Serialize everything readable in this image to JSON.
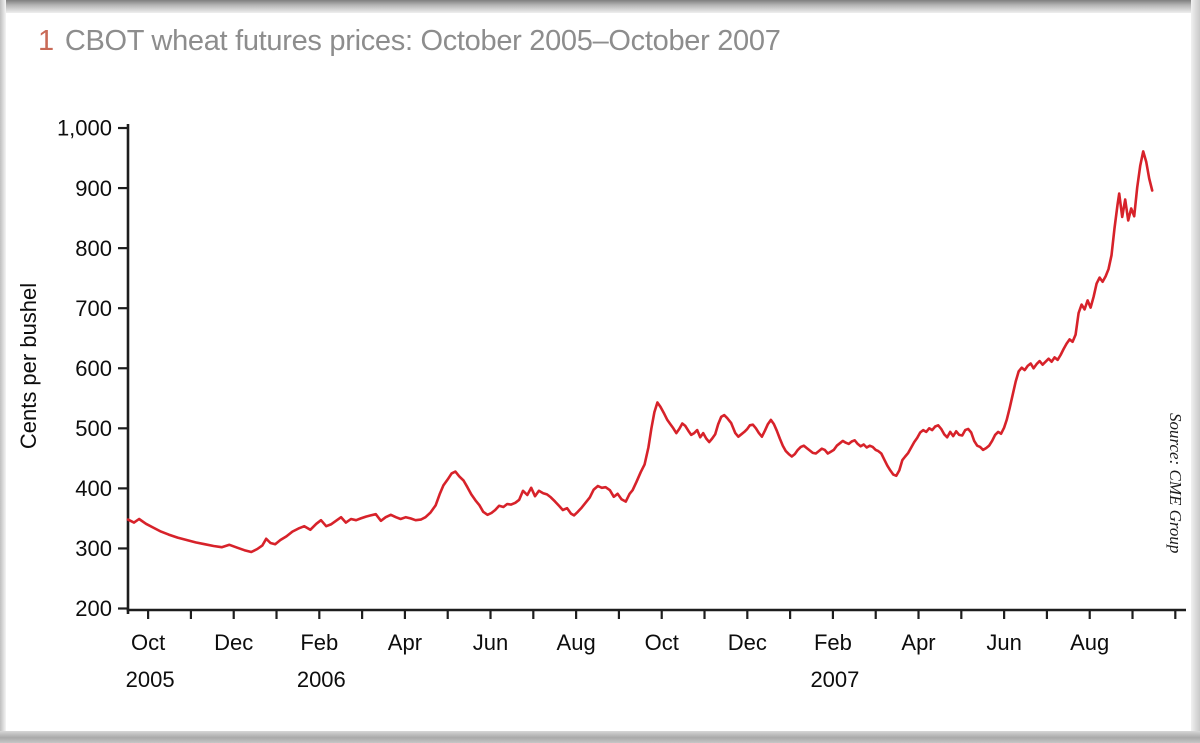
{
  "figure": {
    "number": "1",
    "title": "CBOT wheat futures prices: October 2005–October 2007",
    "number_color": "#c96a57",
    "title_color": "#8d8d8d"
  },
  "chart_data": {
    "type": "line",
    "title": "CBOT wheat futures prices: October 2005–October 2007",
    "xlabel": "",
    "ylabel": "Cents per bushel",
    "ylim": [
      200,
      1000
    ],
    "grid": false,
    "legend": false,
    "source_note": "Source: CME Group",
    "y_ticks": [
      {
        "value": 200,
        "label": "200"
      },
      {
        "value": 300,
        "label": "300"
      },
      {
        "value": 400,
        "label": "400"
      },
      {
        "value": 500,
        "label": "500"
      },
      {
        "value": 600,
        "label": "600"
      },
      {
        "value": 700,
        "label": "700"
      },
      {
        "value": 800,
        "label": "800"
      },
      {
        "value": 900,
        "label": "900"
      },
      {
        "value": 1000,
        "label": "1,000"
      }
    ],
    "x_unit": "months since 2005-10-01 (0 = Oct 2005, labeled ticks every 2nd month, minor tick every month)",
    "x_ticks": [
      {
        "month": "Oct",
        "year": "2005"
      },
      {
        "month": "Dec"
      },
      {
        "month": "Feb",
        "year": "2006"
      },
      {
        "month": "Apr"
      },
      {
        "month": "Jun"
      },
      {
        "month": "Aug"
      },
      {
        "month": "Oct"
      },
      {
        "month": "Dec"
      },
      {
        "month": "Feb",
        "year": "2007"
      },
      {
        "month": "Apr"
      },
      {
        "month": "Jun"
      },
      {
        "month": "Aug"
      }
    ],
    "series": [
      {
        "name": "CBOT wheat futures price (cents per bushel)",
        "color": "#d7222a",
        "points": [
          [
            0,
            348
          ],
          [
            0.14,
            343
          ],
          [
            0.26,
            349
          ],
          [
            0.42,
            341
          ],
          [
            0.58,
            335
          ],
          [
            0.77,
            328
          ],
          [
            0.95,
            323
          ],
          [
            1.16,
            318
          ],
          [
            1.37,
            314
          ],
          [
            1.58,
            310
          ],
          [
            1.79,
            307
          ],
          [
            2.0,
            304
          ],
          [
            2.19,
            302
          ],
          [
            2.37,
            306
          ],
          [
            2.56,
            301
          ],
          [
            2.72,
            297
          ],
          [
            2.88,
            294
          ],
          [
            3.02,
            299
          ],
          [
            3.14,
            305
          ],
          [
            3.23,
            316
          ],
          [
            3.33,
            309
          ],
          [
            3.44,
            307
          ],
          [
            3.56,
            314
          ],
          [
            3.7,
            320
          ],
          [
            3.84,
            328
          ],
          [
            3.98,
            333
          ],
          [
            4.12,
            337
          ],
          [
            4.26,
            331
          ],
          [
            4.4,
            341
          ],
          [
            4.51,
            347
          ],
          [
            4.63,
            337
          ],
          [
            4.74,
            340
          ],
          [
            4.86,
            346
          ],
          [
            4.98,
            352
          ],
          [
            5.09,
            343
          ],
          [
            5.21,
            349
          ],
          [
            5.33,
            347
          ],
          [
            5.44,
            350
          ],
          [
            5.56,
            353
          ],
          [
            5.67,
            355
          ],
          [
            5.79,
            357
          ],
          [
            5.91,
            346
          ],
          [
            6.02,
            352
          ],
          [
            6.14,
            356
          ],
          [
            6.26,
            352
          ],
          [
            6.37,
            349
          ],
          [
            6.49,
            352
          ],
          [
            6.6,
            350
          ],
          [
            6.72,
            347
          ],
          [
            6.84,
            348
          ],
          [
            6.95,
            352
          ],
          [
            7.07,
            360
          ],
          [
            7.19,
            372
          ],
          [
            7.28,
            390
          ],
          [
            7.37,
            405
          ],
          [
            7.47,
            415
          ],
          [
            7.56,
            425
          ],
          [
            7.65,
            428
          ],
          [
            7.74,
            420
          ],
          [
            7.84,
            413
          ],
          [
            7.93,
            402
          ],
          [
            8.02,
            390
          ],
          [
            8.12,
            380
          ],
          [
            8.21,
            372
          ],
          [
            8.3,
            361
          ],
          [
            8.4,
            356
          ],
          [
            8.49,
            359
          ],
          [
            8.58,
            364
          ],
          [
            8.67,
            371
          ],
          [
            8.77,
            369
          ],
          [
            8.86,
            374
          ],
          [
            8.95,
            373
          ],
          [
            9.05,
            376
          ],
          [
            9.14,
            381
          ],
          [
            9.23,
            396
          ],
          [
            9.33,
            389
          ],
          [
            9.42,
            401
          ],
          [
            9.51,
            387
          ],
          [
            9.6,
            396
          ],
          [
            9.7,
            392
          ],
          [
            9.79,
            390
          ],
          [
            9.88,
            385
          ],
          [
            9.98,
            378
          ],
          [
            10.07,
            371
          ],
          [
            10.16,
            364
          ],
          [
            10.26,
            367
          ],
          [
            10.35,
            358
          ],
          [
            10.42,
            355
          ],
          [
            10.51,
            361
          ],
          [
            10.6,
            368
          ],
          [
            10.7,
            377
          ],
          [
            10.79,
            385
          ],
          [
            10.88,
            398
          ],
          [
            10.98,
            404
          ],
          [
            11.07,
            401
          ],
          [
            11.16,
            402
          ],
          [
            11.26,
            397
          ],
          [
            11.35,
            386
          ],
          [
            11.44,
            391
          ],
          [
            11.53,
            382
          ],
          [
            11.63,
            378
          ],
          [
            11.72,
            391
          ],
          [
            11.79,
            397
          ],
          [
            11.88,
            411
          ],
          [
            11.98,
            427
          ],
          [
            12.07,
            440
          ],
          [
            12.16,
            468
          ],
          [
            12.23,
            500
          ],
          [
            12.3,
            527
          ],
          [
            12.37,
            543
          ],
          [
            12.44,
            536
          ],
          [
            12.53,
            524
          ],
          [
            12.6,
            514
          ],
          [
            12.67,
            507
          ],
          [
            12.74,
            500
          ],
          [
            12.81,
            492
          ],
          [
            12.88,
            499
          ],
          [
            12.95,
            508
          ],
          [
            13.02,
            504
          ],
          [
            13.09,
            496
          ],
          [
            13.16,
            489
          ],
          [
            13.23,
            492
          ],
          [
            13.3,
            497
          ],
          [
            13.37,
            485
          ],
          [
            13.44,
            492
          ],
          [
            13.51,
            483
          ],
          [
            13.58,
            477
          ],
          [
            13.65,
            483
          ],
          [
            13.72,
            490
          ],
          [
            13.79,
            507
          ],
          [
            13.86,
            519
          ],
          [
            13.93,
            522
          ],
          [
            14.0,
            517
          ],
          [
            14.09,
            509
          ],
          [
            14.19,
            492
          ],
          [
            14.26,
            486
          ],
          [
            14.33,
            490
          ],
          [
            14.4,
            494
          ],
          [
            14.47,
            499
          ],
          [
            14.53,
            505
          ],
          [
            14.6,
            506
          ],
          [
            14.67,
            500
          ],
          [
            14.74,
            492
          ],
          [
            14.81,
            486
          ],
          [
            14.88,
            496
          ],
          [
            14.95,
            507
          ],
          [
            15.02,
            514
          ],
          [
            15.09,
            507
          ],
          [
            15.16,
            496
          ],
          [
            15.23,
            483
          ],
          [
            15.3,
            471
          ],
          [
            15.37,
            462
          ],
          [
            15.44,
            457
          ],
          [
            15.51,
            453
          ],
          [
            15.58,
            457
          ],
          [
            15.65,
            464
          ],
          [
            15.72,
            469
          ],
          [
            15.79,
            471
          ],
          [
            15.86,
            467
          ],
          [
            15.93,
            463
          ],
          [
            16.0,
            459
          ],
          [
            16.07,
            458
          ],
          [
            16.14,
            462
          ],
          [
            16.21,
            466
          ],
          [
            16.28,
            464
          ],
          [
            16.35,
            458
          ],
          [
            16.42,
            461
          ],
          [
            16.49,
            464
          ],
          [
            16.56,
            471
          ],
          [
            16.63,
            475
          ],
          [
            16.7,
            479
          ],
          [
            16.77,
            476
          ],
          [
            16.84,
            474
          ],
          [
            16.91,
            478
          ],
          [
            16.98,
            480
          ],
          [
            17.05,
            474
          ],
          [
            17.12,
            470
          ],
          [
            17.19,
            473
          ],
          [
            17.26,
            468
          ],
          [
            17.33,
            471
          ],
          [
            17.4,
            469
          ],
          [
            17.47,
            464
          ],
          [
            17.53,
            462
          ],
          [
            17.6,
            458
          ],
          [
            17.67,
            448
          ],
          [
            17.74,
            438
          ],
          [
            17.81,
            430
          ],
          [
            17.88,
            423
          ],
          [
            17.95,
            421
          ],
          [
            18.02,
            430
          ],
          [
            18.09,
            447
          ],
          [
            18.16,
            453
          ],
          [
            18.23,
            459
          ],
          [
            18.3,
            468
          ],
          [
            18.37,
            477
          ],
          [
            18.44,
            484
          ],
          [
            18.51,
            493
          ],
          [
            18.58,
            497
          ],
          [
            18.65,
            494
          ],
          [
            18.72,
            500
          ],
          [
            18.79,
            497
          ],
          [
            18.86,
            503
          ],
          [
            18.93,
            505
          ],
          [
            19.0,
            499
          ],
          [
            19.07,
            490
          ],
          [
            19.14,
            485
          ],
          [
            19.21,
            494
          ],
          [
            19.28,
            487
          ],
          [
            19.35,
            495
          ],
          [
            19.42,
            489
          ],
          [
            19.49,
            488
          ],
          [
            19.56,
            497
          ],
          [
            19.63,
            499
          ],
          [
            19.7,
            493
          ],
          [
            19.77,
            479
          ],
          [
            19.84,
            471
          ],
          [
            19.91,
            469
          ],
          [
            19.98,
            464
          ],
          [
            20.05,
            467
          ],
          [
            20.12,
            471
          ],
          [
            20.19,
            479
          ],
          [
            20.26,
            489
          ],
          [
            20.33,
            494
          ],
          [
            20.4,
            491
          ],
          [
            20.47,
            501
          ],
          [
            20.53,
            514
          ],
          [
            20.6,
            534
          ],
          [
            20.67,
            556
          ],
          [
            20.74,
            578
          ],
          [
            20.81,
            595
          ],
          [
            20.88,
            601
          ],
          [
            20.95,
            597
          ],
          [
            21.02,
            604
          ],
          [
            21.09,
            608
          ],
          [
            21.16,
            600
          ],
          [
            21.23,
            607
          ],
          [
            21.3,
            612
          ],
          [
            21.37,
            606
          ],
          [
            21.44,
            611
          ],
          [
            21.51,
            616
          ],
          [
            21.58,
            611
          ],
          [
            21.65,
            618
          ],
          [
            21.72,
            614
          ],
          [
            21.79,
            622
          ],
          [
            21.86,
            632
          ],
          [
            21.93,
            641
          ],
          [
            22.0,
            648
          ],
          [
            22.07,
            644
          ],
          [
            22.14,
            656
          ],
          [
            22.21,
            692
          ],
          [
            22.28,
            706
          ],
          [
            22.35,
            698
          ],
          [
            22.42,
            713
          ],
          [
            22.49,
            701
          ],
          [
            22.56,
            719
          ],
          [
            22.63,
            741
          ],
          [
            22.7,
            751
          ],
          [
            22.77,
            744
          ],
          [
            22.84,
            753
          ],
          [
            22.91,
            765
          ],
          [
            22.98,
            788
          ],
          [
            23.05,
            833
          ],
          [
            23.12,
            872
          ],
          [
            23.16,
            891
          ],
          [
            23.23,
            852
          ],
          [
            23.3,
            881
          ],
          [
            23.37,
            846
          ],
          [
            23.44,
            866
          ],
          [
            23.51,
            853
          ],
          [
            23.58,
            901
          ],
          [
            23.65,
            937
          ],
          [
            23.72,
            961
          ],
          [
            23.79,
            944
          ],
          [
            23.86,
            916
          ],
          [
            23.93,
            896
          ]
        ]
      }
    ]
  }
}
